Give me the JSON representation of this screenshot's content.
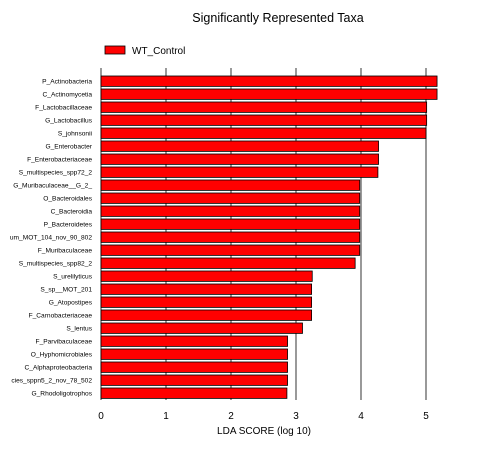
{
  "chart_data": {
    "type": "bar",
    "orientation": "horizontal",
    "title": "Significantly Represented Taxa",
    "xlabel": "LDA SCORE (log 10)",
    "ylabel": "",
    "xlim": [
      0,
      5.6
    ],
    "xticks": [
      0,
      1,
      2,
      3,
      4,
      5
    ],
    "grid": "vertical",
    "legend_position": "top-left",
    "series": [
      {
        "name": "WT_Control",
        "color": "#ff0000",
        "values": [
          5.17,
          5.17,
          5.01,
          5.01,
          5.0,
          4.27,
          4.27,
          4.26,
          3.98,
          3.98,
          3.98,
          3.98,
          3.98,
          3.98,
          3.91,
          3.25,
          3.24,
          3.24,
          3.24,
          3.1,
          2.87,
          2.87,
          2.87,
          2.87,
          2.86
        ]
      }
    ],
    "categories": [
      "P_Actinobacteria",
      "C_Actinomycetia",
      "F_Lactobacillaceae",
      "G_Lactobacillus",
      "S_johnsonii",
      "G_Enterobacter",
      "F_Enterobacteriaceae",
      "S_multispecies_spp72_2",
      "G_Muribaculaceae__G_2_",
      "O_Bacteroidales",
      "C_Bacteroidia",
      "P_Bacteroidetes",
      "um_MOT_104_nov_90_802",
      "F_Muribaculaceae",
      "S_multispecies_spp82_2",
      "S_urelilyticus",
      "S_sp__MOT_201",
      "G_Atopostipes",
      "F_Carnobacteriaceae",
      "S_lentus",
      "F_Parvibaculaceae",
      "O_Hyphomicrobiales",
      "C_Alphaproteobacteria",
      "cies_sppn5_2_nov_78_502",
      "G_Rhodoligotrophos"
    ]
  }
}
